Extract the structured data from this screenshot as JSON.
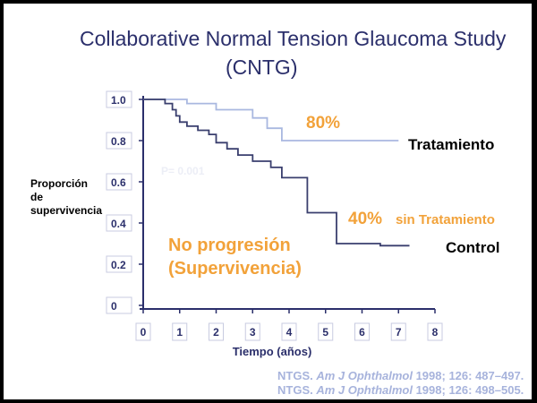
{
  "title_line1": "Collaborative Normal Tension Glaucoma Study",
  "title_line2": "(CNTG)",
  "chart_data": {
    "type": "line",
    "xlabel": "Tiempo (años)",
    "ylabel_lines": [
      "Proporción",
      "de",
      "supervivencia"
    ],
    "xlim": [
      0,
      8
    ],
    "ylim": [
      0,
      1.0
    ],
    "x_ticks": [
      "0",
      "1",
      "2",
      "3",
      "4",
      "5",
      "6",
      "7",
      "8"
    ],
    "y_ticks": [
      "0",
      "0.2",
      "0.4",
      "0.6",
      "0.8",
      "1.0"
    ],
    "grid": false,
    "series": [
      {
        "name": "Tratamiento",
        "color": "#a9b8e0",
        "step_points": [
          [
            0,
            1.0
          ],
          [
            1.2,
            1.0
          ],
          [
            1.2,
            0.98
          ],
          [
            2.0,
            0.98
          ],
          [
            2.0,
            0.95
          ],
          [
            3.0,
            0.95
          ],
          [
            3.0,
            0.91
          ],
          [
            3.4,
            0.91
          ],
          [
            3.4,
            0.86
          ],
          [
            3.8,
            0.86
          ],
          [
            3.8,
            0.8
          ],
          [
            7.0,
            0.8
          ]
        ]
      },
      {
        "name": "Control",
        "color": "#3a3f6e",
        "step_points": [
          [
            0,
            1.0
          ],
          [
            0.6,
            1.0
          ],
          [
            0.6,
            0.98
          ],
          [
            0.8,
            0.98
          ],
          [
            0.8,
            0.95
          ],
          [
            0.9,
            0.95
          ],
          [
            0.9,
            0.92
          ],
          [
            1.0,
            0.92
          ],
          [
            1.0,
            0.89
          ],
          [
            1.2,
            0.89
          ],
          [
            1.2,
            0.87
          ],
          [
            1.5,
            0.87
          ],
          [
            1.5,
            0.85
          ],
          [
            1.8,
            0.85
          ],
          [
            1.8,
            0.83
          ],
          [
            2.0,
            0.83
          ],
          [
            2.0,
            0.79
          ],
          [
            2.3,
            0.79
          ],
          [
            2.3,
            0.76
          ],
          [
            2.6,
            0.76
          ],
          [
            2.6,
            0.73
          ],
          [
            3.0,
            0.73
          ],
          [
            3.0,
            0.7
          ],
          [
            3.5,
            0.7
          ],
          [
            3.5,
            0.67
          ],
          [
            3.8,
            0.67
          ],
          [
            3.8,
            0.62
          ],
          [
            4.5,
            0.62
          ],
          [
            4.5,
            0.45
          ],
          [
            5.3,
            0.45
          ],
          [
            5.3,
            0.3
          ],
          [
            6.5,
            0.3
          ],
          [
            6.5,
            0.29
          ],
          [
            7.3,
            0.29
          ]
        ]
      }
    ],
    "annotations": {
      "pct_treatment": "80%",
      "pct_control": "40%",
      "pct_control_suffix": "sin Tratamiento",
      "label_treatment": "Tratamiento",
      "label_control": "Control",
      "p_value": "P= 0.001",
      "endpoint_line1": "No progresión",
      "endpoint_line2": "(Supervivencia)"
    },
    "colors": {
      "accent_orange": "#f2a23a",
      "axis": "#2b2f6b",
      "p_value": "#eceef6"
    }
  },
  "citations": [
    {
      "prefix": "NTGS. ",
      "journal": "Am J Ophthalmol",
      "rest": " 1998; 126: 487–497."
    },
    {
      "prefix": "NTGS. ",
      "journal": "Am J Ophthalmol",
      "rest": " 1998; 126: 498–505."
    }
  ]
}
